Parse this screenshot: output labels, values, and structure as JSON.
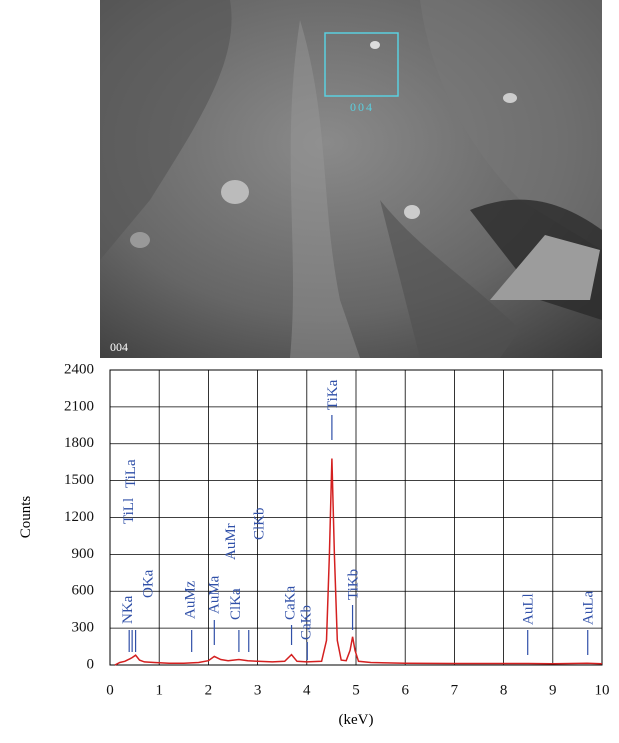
{
  "image": {
    "box_label": "004",
    "corner_label": "004"
  },
  "chart_data": {
    "type": "line",
    "xlabel": "(keV)",
    "ylabel": "Counts",
    "x": [
      0.1,
      0.2,
      0.3,
      0.4,
      0.45,
      0.52,
      0.6,
      0.7,
      0.9,
      1.2,
      1.5,
      1.8,
      2.0,
      2.12,
      2.25,
      2.4,
      2.62,
      2.8,
      3.0,
      3.3,
      3.55,
      3.69,
      3.8,
      4.0,
      4.3,
      4.4,
      4.46,
      4.51,
      4.56,
      4.62,
      4.7,
      4.8,
      4.88,
      4.93,
      4.98,
      5.05,
      5.3,
      6.0,
      7.0,
      8.0,
      8.5,
      9.0,
      9.7,
      10.0
    ],
    "values": [
      0,
      20,
      30,
      50,
      60,
      80,
      40,
      25,
      20,
      15,
      15,
      20,
      35,
      70,
      45,
      35,
      45,
      35,
      30,
      25,
      30,
      85,
      30,
      25,
      30,
      200,
      900,
      1680,
      900,
      200,
      40,
      35,
      120,
      230,
      120,
      30,
      20,
      15,
      12,
      12,
      12,
      10,
      15,
      10
    ],
    "color": "#d42020",
    "xlim": [
      0,
      10
    ],
    "xticks": [
      0,
      1,
      2,
      3,
      4,
      5,
      6,
      7,
      8,
      9,
      10
    ],
    "ylim": [
      0,
      2400
    ],
    "yticks": [
      0,
      300,
      600,
      900,
      1200,
      1500,
      1800,
      2100,
      2400
    ],
    "grid": true,
    "annotations": [
      {
        "label": "NKa",
        "x": 0.39
      },
      {
        "label": "TiLl",
        "x": 0.45
      },
      {
        "label": "TiLa",
        "x": 0.45
      },
      {
        "label": "OKa",
        "x": 0.52
      },
      {
        "label": "AuMz",
        "x": 1.66
      },
      {
        "label": "AuMa",
        "x": 2.12
      },
      {
        "label": "AuMr",
        "x": 2.2
      },
      {
        "label": "ClKa",
        "x": 2.62
      },
      {
        "label": "ClKb",
        "x": 2.82
      },
      {
        "label": "CaKa",
        "x": 3.69
      },
      {
        "label": "CaKb",
        "x": 4.01
      },
      {
        "label": "TiKa",
        "x": 4.51
      },
      {
        "label": "TiKb",
        "x": 4.93
      },
      {
        "label": "AuLl",
        "x": 8.49
      },
      {
        "label": "AuLa",
        "x": 9.71
      }
    ]
  }
}
